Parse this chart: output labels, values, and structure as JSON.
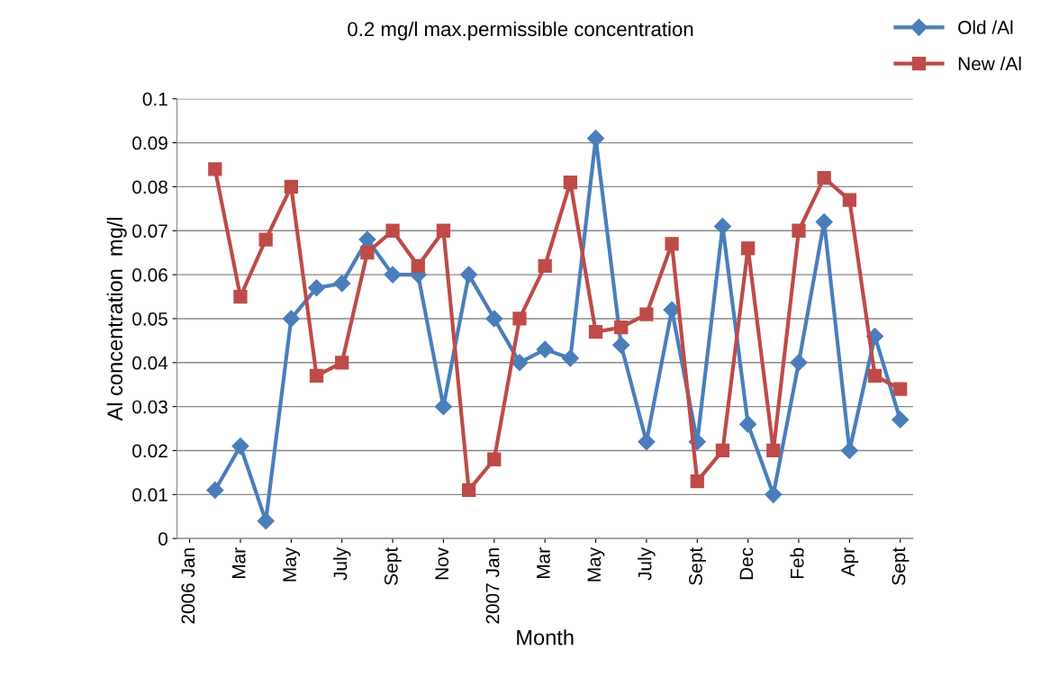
{
  "chart_data": {
    "type": "line",
    "title": "0.2 mg/l max.permissible concentration",
    "xlabel": "Month",
    "ylabel": "Al concentration  mg/l",
    "categories": [
      "2006 Jan",
      null,
      "Mar",
      null,
      "May",
      null,
      "July",
      null,
      "Sept",
      null,
      "Nov",
      null,
      "2007 Jan",
      null,
      "Mar",
      null,
      "May",
      null,
      "July",
      null,
      "Sept",
      null,
      "Dec",
      null,
      "Feb",
      null,
      "Apr",
      null,
      "Sept"
    ],
    "series": [
      {
        "name": "Old /Al",
        "color": "#4a7ebb",
        "marker": "diamond",
        "values": [
          null,
          0.011,
          0.021,
          0.004,
          0.05,
          0.057,
          0.058,
          0.068,
          0.06,
          0.06,
          0.03,
          0.06,
          0.05,
          0.04,
          0.043,
          0.041,
          0.091,
          0.044,
          0.022,
          0.052,
          0.022,
          0.071,
          0.026,
          0.01,
          0.04,
          0.072,
          0.02,
          0.046,
          0.027
        ]
      },
      {
        "name": "New /Al",
        "color": "#be4b48",
        "marker": "square",
        "values": [
          null,
          0.084,
          0.055,
          0.068,
          0.08,
          0.037,
          0.04,
          0.065,
          0.07,
          0.062,
          0.07,
          0.011,
          0.018,
          0.05,
          0.062,
          0.081,
          0.047,
          0.048,
          0.051,
          0.067,
          0.013,
          0.02,
          0.066,
          0.02,
          0.07,
          0.082,
          0.077,
          0.037,
          0.034
        ]
      }
    ],
    "ylim": [
      0,
      0.1
    ],
    "yticks": [
      0,
      0.01,
      0.02,
      0.03,
      0.04,
      0.05,
      0.06,
      0.07,
      0.08,
      0.09,
      0.1
    ],
    "grid": "y",
    "legend": "top right",
    "line_style": "solid"
  }
}
